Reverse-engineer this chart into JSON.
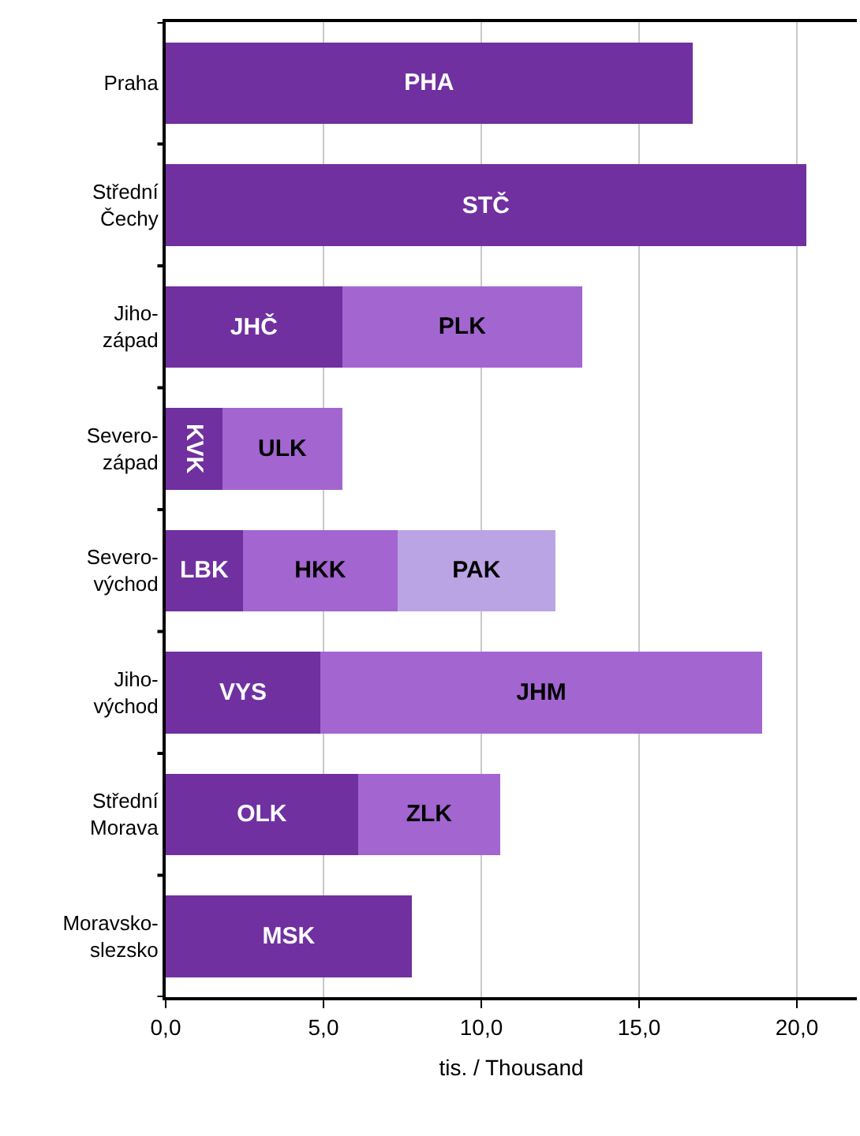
{
  "chart_data": {
    "type": "bar",
    "orientation": "horizontal",
    "stacked": true,
    "xlabel": "tis. / Thousand",
    "categories": [
      "Praha",
      "Střední\nČechy",
      "Jiho-\nzápad",
      "Severo-\nzápad",
      "Severo-\nvýchod",
      "Jiho-\nvýchod",
      "Střední\nMorava",
      "Moravsko-\nslezsko"
    ],
    "series": [
      {
        "color": "#7030a0",
        "values": [
          16.7,
          20.3,
          5.6,
          1.8,
          2.45,
          4.9,
          6.1,
          7.8
        ],
        "value_labels": [
          "PHA",
          "STČ",
          "JHČ",
          "KVK",
          "LBK",
          "VYS",
          "OLK",
          "MSK"
        ]
      },
      {
        "color": "#a366d1",
        "values": [
          null,
          null,
          7.6,
          3.8,
          4.9,
          14.0,
          4.5,
          null
        ],
        "value_labels": [
          null,
          null,
          "PLK",
          "ULK",
          "HKK",
          "JHM",
          "ZLK",
          null
        ]
      },
      {
        "color": "#bba4e4",
        "values": [
          null,
          null,
          null,
          null,
          5.0,
          null,
          null,
          null
        ],
        "value_labels": [
          null,
          null,
          null,
          null,
          "PAK",
          null,
          null,
          null
        ]
      }
    ],
    "xlim": [
      0,
      21.9
    ],
    "xticks": [
      {
        "value": 0,
        "label": "0,0"
      },
      {
        "value": 5,
        "label": "5,0"
      },
      {
        "value": 10,
        "label": "10,0"
      },
      {
        "value": 15,
        "label": "15,0"
      },
      {
        "value": 20,
        "label": "20,0"
      }
    ],
    "grid": "x"
  }
}
